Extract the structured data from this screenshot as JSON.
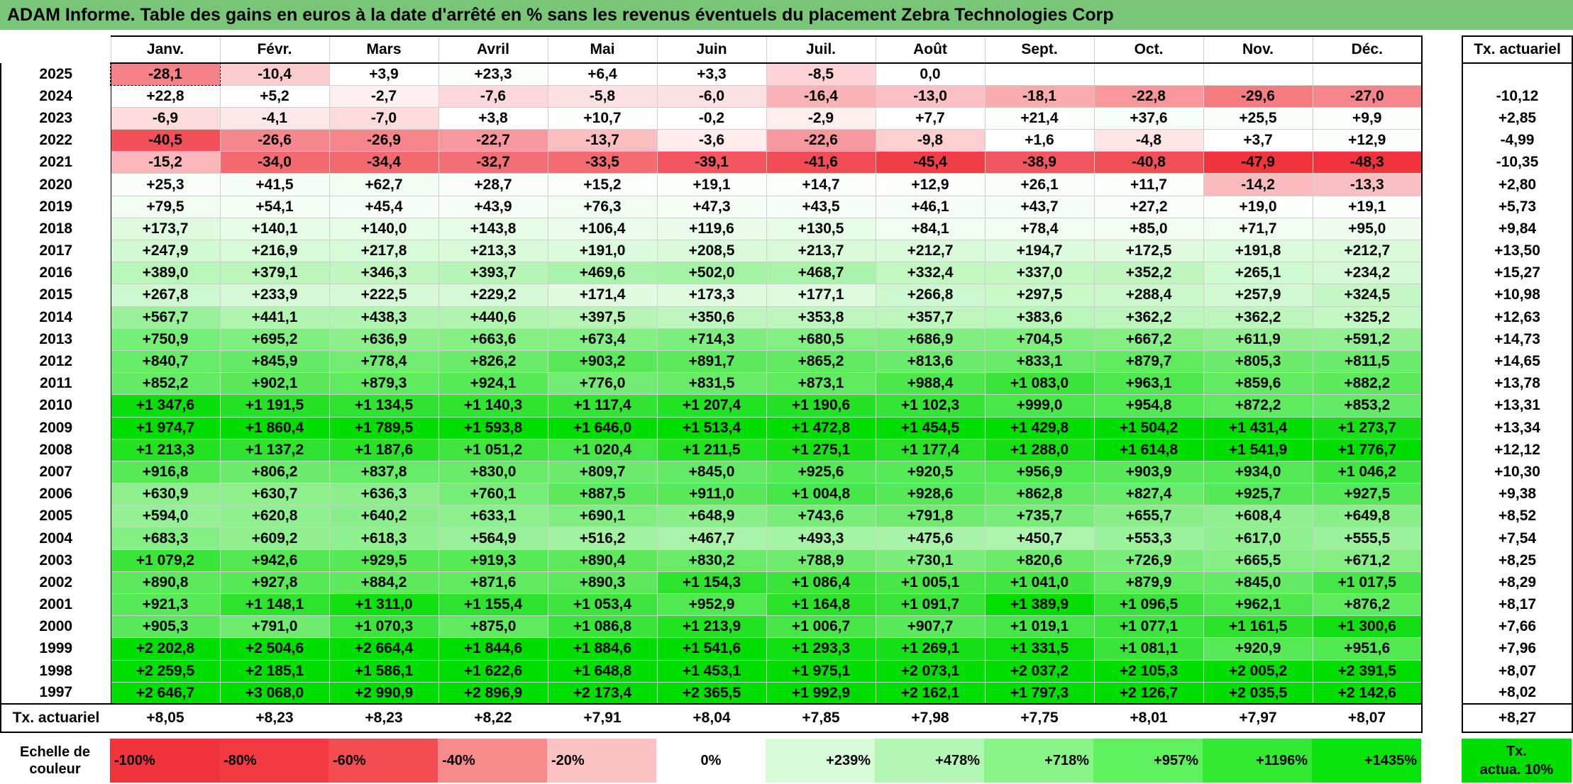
{
  "title": "ADAM Informe. Table des gains en euros à la date d'arrêté en % sans les revenus éventuels du placement Zebra Technologies Corp",
  "months": [
    "Janv.",
    "Févr.",
    "Mars",
    "Avril",
    "Mai",
    "Juin",
    "Juil.",
    "Août",
    "Sept.",
    "Oct.",
    "Nov.",
    "Déc."
  ],
  "side_header": "Tx. actuariel",
  "rows": [
    {
      "year": "2025",
      "values": [
        "-28,1",
        "-10,4",
        "+3,9",
        "+23,3",
        "+6,4",
        "+3,3",
        "-8,5",
        "0,0",
        "",
        "",
        "",
        ""
      ],
      "rate": ""
    },
    {
      "year": "2024",
      "values": [
        "+22,8",
        "+5,2",
        "-2,7",
        "-7,6",
        "-5,8",
        "-6,0",
        "-16,4",
        "-13,0",
        "-18,1",
        "-22,8",
        "-29,6",
        "-27,0"
      ],
      "rate": "-10,12"
    },
    {
      "year": "2023",
      "values": [
        "-6,9",
        "-4,1",
        "-7,0",
        "+3,8",
        "+10,7",
        "-0,2",
        "-2,9",
        "+7,7",
        "+21,4",
        "+37,6",
        "+25,5",
        "+9,9"
      ],
      "rate": "+2,85"
    },
    {
      "year": "2022",
      "values": [
        "-40,5",
        "-26,6",
        "-26,9",
        "-22,7",
        "-13,7",
        "-3,6",
        "-22,6",
        "-9,8",
        "+1,6",
        "-4,8",
        "+3,7",
        "+12,9"
      ],
      "rate": "-4,99"
    },
    {
      "year": "2021",
      "values": [
        "-15,2",
        "-34,0",
        "-34,4",
        "-32,7",
        "-33,5",
        "-39,1",
        "-41,6",
        "-45,4",
        "-38,9",
        "-40,8",
        "-47,9",
        "-48,3"
      ],
      "rate": "-10,35"
    },
    {
      "year": "2020",
      "values": [
        "+25,3",
        "+41,5",
        "+62,7",
        "+28,7",
        "+15,2",
        "+19,1",
        "+14,7",
        "+12,9",
        "+26,1",
        "+11,7",
        "-14,2",
        "-13,3"
      ],
      "rate": "+2,80"
    },
    {
      "year": "2019",
      "values": [
        "+79,5",
        "+54,1",
        "+45,4",
        "+43,9",
        "+76,3",
        "+47,3",
        "+43,5",
        "+46,1",
        "+43,7",
        "+27,2",
        "+19,0",
        "+19,1"
      ],
      "rate": "+5,73"
    },
    {
      "year": "2018",
      "values": [
        "+173,7",
        "+140,1",
        "+140,0",
        "+143,8",
        "+106,4",
        "+119,6",
        "+130,5",
        "+84,1",
        "+78,4",
        "+85,0",
        "+71,7",
        "+95,0"
      ],
      "rate": "+9,84"
    },
    {
      "year": "2017",
      "values": [
        "+247,9",
        "+216,9",
        "+217,8",
        "+213,3",
        "+191,0",
        "+208,5",
        "+213,7",
        "+212,7",
        "+194,7",
        "+172,5",
        "+191,8",
        "+212,7"
      ],
      "rate": "+13,50"
    },
    {
      "year": "2016",
      "values": [
        "+389,0",
        "+379,1",
        "+346,3",
        "+393,7",
        "+469,6",
        "+502,0",
        "+468,7",
        "+332,4",
        "+337,0",
        "+352,2",
        "+265,1",
        "+234,2"
      ],
      "rate": "+15,27"
    },
    {
      "year": "2015",
      "values": [
        "+267,8",
        "+233,9",
        "+222,5",
        "+229,2",
        "+171,4",
        "+173,3",
        "+177,1",
        "+266,8",
        "+297,5",
        "+288,4",
        "+257,9",
        "+324,5"
      ],
      "rate": "+10,98"
    },
    {
      "year": "2014",
      "values": [
        "+567,7",
        "+441,1",
        "+438,3",
        "+440,6",
        "+397,5",
        "+350,6",
        "+353,8",
        "+357,7",
        "+383,6",
        "+362,2",
        "+362,2",
        "+325,2"
      ],
      "rate": "+12,63"
    },
    {
      "year": "2013",
      "values": [
        "+750,9",
        "+695,2",
        "+636,9",
        "+663,6",
        "+673,4",
        "+714,3",
        "+680,5",
        "+686,9",
        "+704,5",
        "+667,2",
        "+611,9",
        "+591,2"
      ],
      "rate": "+14,73"
    },
    {
      "year": "2012",
      "values": [
        "+840,7",
        "+845,9",
        "+778,4",
        "+826,2",
        "+903,2",
        "+891,7",
        "+865,2",
        "+813,6",
        "+833,1",
        "+879,7",
        "+805,3",
        "+811,5"
      ],
      "rate": "+14,65"
    },
    {
      "year": "2011",
      "values": [
        "+852,2",
        "+902,1",
        "+879,3",
        "+924,1",
        "+776,0",
        "+831,5",
        "+873,1",
        "+988,4",
        "+1 083,0",
        "+963,1",
        "+859,6",
        "+882,2"
      ],
      "rate": "+13,78"
    },
    {
      "year": "2010",
      "values": [
        "+1 347,6",
        "+1 191,5",
        "+1 134,5",
        "+1 140,3",
        "+1 117,4",
        "+1 207,4",
        "+1 190,6",
        "+1 102,3",
        "+999,0",
        "+954,8",
        "+872,2",
        "+853,2"
      ],
      "rate": "+13,31"
    },
    {
      "year": "2009",
      "values": [
        "+1 974,7",
        "+1 860,4",
        "+1 789,5",
        "+1 593,8",
        "+1 646,0",
        "+1 513,4",
        "+1 472,8",
        "+1 454,5",
        "+1 429,8",
        "+1 504,2",
        "+1 431,4",
        "+1 273,7"
      ],
      "rate": "+13,34"
    },
    {
      "year": "2008",
      "values": [
        "+1 213,3",
        "+1 137,2",
        "+1 187,6",
        "+1 051,2",
        "+1 020,4",
        "+1 211,5",
        "+1 275,1",
        "+1 177,4",
        "+1 288,0",
        "+1 614,8",
        "+1 541,9",
        "+1 776,7"
      ],
      "rate": "+12,12"
    },
    {
      "year": "2007",
      "values": [
        "+916,8",
        "+806,2",
        "+837,8",
        "+830,0",
        "+809,7",
        "+845,0",
        "+925,6",
        "+920,5",
        "+956,9",
        "+903,9",
        "+934,0",
        "+1 046,2"
      ],
      "rate": "+10,30"
    },
    {
      "year": "2006",
      "values": [
        "+630,9",
        "+630,7",
        "+636,3",
        "+760,1",
        "+887,5",
        "+911,0",
        "+1 004,8",
        "+928,6",
        "+862,8",
        "+827,4",
        "+925,7",
        "+927,5"
      ],
      "rate": "+9,38"
    },
    {
      "year": "2005",
      "values": [
        "+594,0",
        "+620,8",
        "+640,2",
        "+633,1",
        "+690,1",
        "+648,9",
        "+743,6",
        "+791,8",
        "+735,7",
        "+655,7",
        "+608,4",
        "+649,8"
      ],
      "rate": "+8,52"
    },
    {
      "year": "2004",
      "values": [
        "+683,3",
        "+609,2",
        "+618,3",
        "+564,9",
        "+516,2",
        "+467,7",
        "+493,3",
        "+475,6",
        "+450,7",
        "+553,3",
        "+617,0",
        "+555,5"
      ],
      "rate": "+7,54"
    },
    {
      "year": "2003",
      "values": [
        "+1 079,2",
        "+942,6",
        "+929,5",
        "+919,3",
        "+890,4",
        "+830,2",
        "+788,9",
        "+730,1",
        "+820,6",
        "+726,9",
        "+665,5",
        "+671,2"
      ],
      "rate": "+8,25"
    },
    {
      "year": "2002",
      "values": [
        "+890,8",
        "+927,8",
        "+884,2",
        "+871,6",
        "+890,3",
        "+1 154,3",
        "+1 086,4",
        "+1 005,1",
        "+1 041,0",
        "+879,9",
        "+845,0",
        "+1 017,5"
      ],
      "rate": "+8,29"
    },
    {
      "year": "2001",
      "values": [
        "+921,3",
        "+1 148,1",
        "+1 311,0",
        "+1 155,4",
        "+1 053,4",
        "+952,9",
        "+1 164,8",
        "+1 091,7",
        "+1 389,9",
        "+1 096,5",
        "+962,1",
        "+876,2"
      ],
      "rate": "+8,17"
    },
    {
      "year": "2000",
      "values": [
        "+905,3",
        "+791,0",
        "+1 070,3",
        "+875,0",
        "+1 086,8",
        "+1 213,9",
        "+1 006,7",
        "+907,7",
        "+1 019,1",
        "+1 077,1",
        "+1 161,5",
        "+1 300,6"
      ],
      "rate": "+7,66"
    },
    {
      "year": "1999",
      "values": [
        "+2 202,8",
        "+2 504,6",
        "+2 664,4",
        "+1 844,6",
        "+1 884,6",
        "+1 541,6",
        "+1 293,3",
        "+1 269,1",
        "+1 331,5",
        "+1 081,1",
        "+920,9",
        "+951,6"
      ],
      "rate": "+7,96"
    },
    {
      "year": "1998",
      "values": [
        "+2 259,5",
        "+2 185,1",
        "+1 586,1",
        "+1 622,6",
        "+1 648,8",
        "+1 453,1",
        "+1 975,1",
        "+2 073,1",
        "+2 037,2",
        "+2 105,3",
        "+2 005,2",
        "+2 391,5"
      ],
      "rate": "+8,07"
    },
    {
      "year": "1997",
      "values": [
        "+2 646,7",
        "+3 068,0",
        "+2 990,9",
        "+2 896,9",
        "+2 173,4",
        "+2 365,5",
        "+1 992,9",
        "+2 162,1",
        "+1 797,3",
        "+2 126,7",
        "+2 035,5",
        "+2 142,6"
      ],
      "rate": "+8,02"
    }
  ],
  "footer": {
    "label": "Tx. actuariel",
    "values": [
      "+8,05",
      "+8,23",
      "+8,23",
      "+8,22",
      "+7,91",
      "+8,04",
      "+7,85",
      "+7,98",
      "+7,75",
      "+8,01",
      "+7,97",
      "+8,07"
    ],
    "rate": "+8,27"
  },
  "scale": {
    "label_line1": "Echelle de",
    "label_line2": "couleur",
    "items": [
      {
        "text": "-100%",
        "color": "#f0343c"
      },
      {
        "text": "-80%",
        "color": "#f23a40"
      },
      {
        "text": "-60%",
        "color": "#f44d51"
      },
      {
        "text": "-40%",
        "color": "#f98a8c"
      },
      {
        "text": "-20%",
        "color": "#fcc1c3"
      },
      {
        "text": "0%",
        "color": "#ffffff"
      },
      {
        "text": "+239%",
        "color": "#d8fcd8"
      },
      {
        "text": "+478%",
        "color": "#b2f7b2"
      },
      {
        "text": "+718%",
        "color": "#88f488"
      },
      {
        "text": "+957%",
        "color": "#5ef05e"
      },
      {
        "text": "+1196%",
        "color": "#33ea33"
      },
      {
        "text": "+1435%",
        "color": "#09e309"
      }
    ],
    "side_line1": "Tx.",
    "side_line2": "actua. 10%"
  },
  "colors": {
    "title_bg": "#79c679",
    "negative_max": "#f0343c",
    "positive_max": "#00dd00",
    "zero": "#ffffff"
  }
}
